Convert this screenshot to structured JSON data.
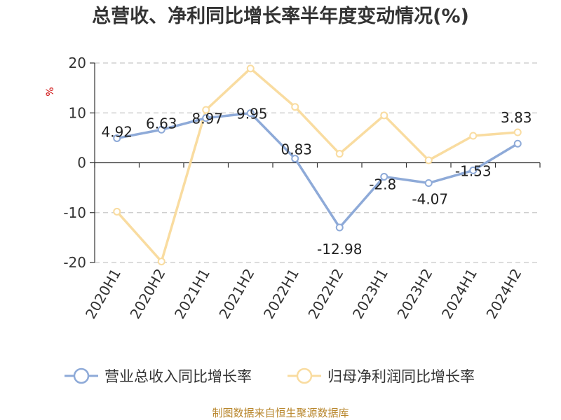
{
  "chart_data": {
    "type": "line",
    "title": "总营收、净利同比增长率半年度变动情况(%)",
    "unit_label": "%",
    "categories": [
      "2020H1",
      "2020H2",
      "2021H1",
      "2021H2",
      "2022H1",
      "2022H2",
      "2023H1",
      "2023H2",
      "2024H1",
      "2024H2"
    ],
    "ylim": [
      -20,
      20
    ],
    "yticks": [
      20,
      10,
      0,
      -10,
      -20
    ],
    "grid": true,
    "legend_position": "bottom",
    "series": [
      {
        "name": "营业总收入同比增长率",
        "color": "#8eaad8",
        "values": [
          4.92,
          6.63,
          8.97,
          9.95,
          0.83,
          -12.98,
          -2.8,
          -4.07,
          -1.53,
          3.83
        ],
        "data_labels": [
          "4.92",
          "6.63",
          "8.97",
          "9.95",
          "0.83",
          "-12.98",
          "-2.8",
          "-4.07",
          "-1.53",
          "3.83"
        ]
      },
      {
        "name": "归母净利润同比增长率",
        "color": "#f9dca0",
        "values": [
          -9.8,
          -19.8,
          10.6,
          18.9,
          11.2,
          1.8,
          9.5,
          0.5,
          5.4,
          6.1
        ]
      }
    ],
    "source": "制图数据来自恒生聚源数据库"
  }
}
